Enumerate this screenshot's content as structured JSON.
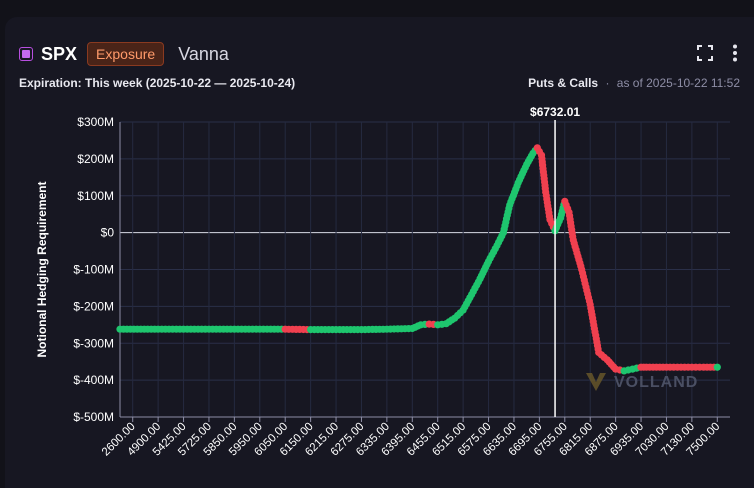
{
  "header": {
    "symbol": "SPX",
    "badge": "Exposure",
    "metric": "Vanna"
  },
  "subheader": {
    "expiration": "Expiration: This week (2025-10-22 — 2025-10-24)",
    "mode": "Puts & Calls",
    "separator": "·",
    "as_of": "as of 2025-10-22 11:52"
  },
  "icons": [
    "fullscreen-icon",
    "more-vert-icon"
  ],
  "watermark": "VOLLAND",
  "colors": {
    "positive": "#1ec66e",
    "negative": "#f0404f",
    "line": "#8c96b4",
    "spot_line": "#ffffff"
  },
  "chart_data": {
    "type": "line",
    "ylabel": "Notional Hedging Requirement",
    "ylim": [
      -500,
      300
    ],
    "y_ticks": [
      "$300M",
      "$200M",
      "$100M",
      "$0",
      "$-100M",
      "$-200M",
      "$-300M",
      "$-400M",
      "$-500M"
    ],
    "x_ticks": [
      "2600.00",
      "4900.00",
      "5425.00",
      "5725.00",
      "5850.00",
      "5950.00",
      "6050.00",
      "6150.00",
      "6215.00",
      "6275.00",
      "6335.00",
      "6395.00",
      "6455.00",
      "6515.00",
      "6575.00",
      "6635.00",
      "6695.00",
      "6755.00",
      "6815.00",
      "6875.00",
      "6935.00",
      "7030.00",
      "7130.00",
      "7500.00"
    ],
    "spot": {
      "label": "$6732.01",
      "value": 6732.01
    },
    "series": [
      {
        "values": [
          [
            2600,
            -262
          ],
          [
            4900,
            -262
          ],
          [
            5425,
            -262
          ],
          [
            5725,
            -262
          ],
          [
            5850,
            -262
          ],
          [
            5950,
            -262
          ],
          [
            6050,
            -262
          ],
          [
            6150,
            -263
          ],
          [
            6215,
            -263
          ],
          [
            6275,
            -263
          ],
          [
            6335,
            -262
          ],
          [
            6395,
            -260
          ],
          [
            6415,
            -250
          ],
          [
            6435,
            -248
          ],
          [
            6455,
            -250
          ],
          [
            6475,
            -247
          ],
          [
            6495,
            -232
          ],
          [
            6515,
            -210
          ],
          [
            6535,
            -168
          ],
          [
            6555,
            -125
          ],
          [
            6575,
            -78
          ],
          [
            6595,
            -35
          ],
          [
            6610,
            0
          ],
          [
            6625,
            75
          ],
          [
            6645,
            135
          ],
          [
            6665,
            185
          ],
          [
            6680,
            215
          ],
          [
            6690,
            230
          ],
          [
            6700,
            210
          ],
          [
            6710,
            110
          ],
          [
            6720,
            35
          ],
          [
            6732,
            5
          ],
          [
            6745,
            40
          ],
          [
            6755,
            85
          ],
          [
            6765,
            55
          ],
          [
            6775,
            -20
          ],
          [
            6795,
            -100
          ],
          [
            6815,
            -195
          ],
          [
            6835,
            -325
          ],
          [
            6855,
            -345
          ],
          [
            6875,
            -370
          ],
          [
            6895,
            -375
          ],
          [
            6915,
            -370
          ],
          [
            6935,
            -365
          ],
          [
            6955,
            -365
          ],
          [
            7030,
            -365
          ],
          [
            7130,
            -365
          ],
          [
            7300,
            -365
          ],
          [
            7500,
            -365
          ]
        ]
      }
    ]
  }
}
